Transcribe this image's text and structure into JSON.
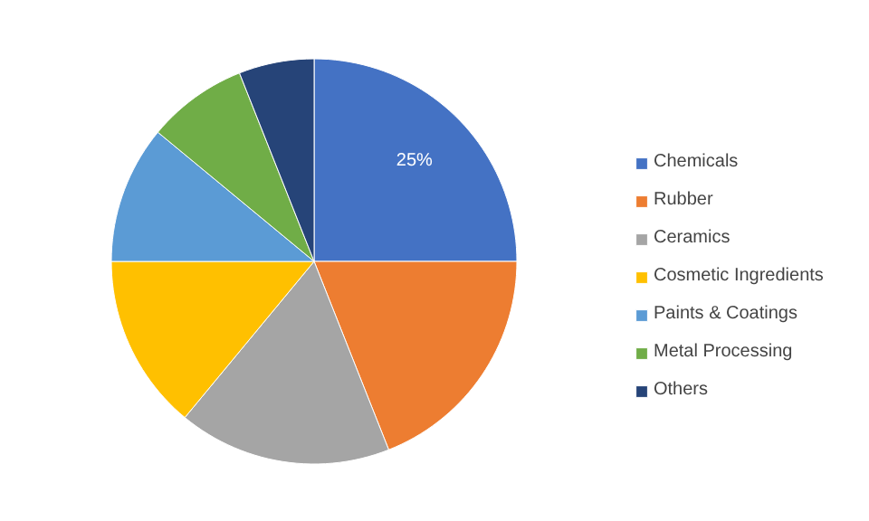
{
  "chart_data": {
    "type": "pie",
    "categories": [
      "Chemicals",
      "Rubber",
      "Ceramics",
      "Cosmetic Ingredients",
      "Paints & Coatings",
      "Metal Processing",
      "Others"
    ],
    "values": [
      25,
      19,
      17,
      14,
      11,
      8,
      6
    ],
    "colors": [
      "#4472c4",
      "#ed7d31",
      "#a5a5a5",
      "#ffc000",
      "#5b9bd5",
      "#70ad47",
      "#264478"
    ],
    "value_labels": [
      "25%",
      null,
      null,
      null,
      null,
      null,
      null
    ],
    "legend": "right"
  }
}
